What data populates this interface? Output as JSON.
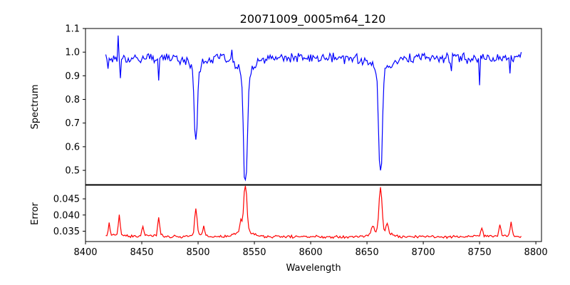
{
  "chart_data": {
    "title": "20071009_0005m64_120",
    "shared_x": {
      "label": "Wavelength",
      "xlim": [
        8400,
        8805
      ],
      "xticks": [
        8400,
        8450,
        8500,
        8550,
        8600,
        8650,
        8700,
        8750,
        8800
      ]
    },
    "panels": [
      {
        "type": "line",
        "ylabel": "Spectrum",
        "ylim": [
          0.44,
          1.1
        ],
        "yticks": [
          0.5,
          0.6,
          0.7,
          0.8,
          0.9,
          1.0,
          1.1
        ],
        "ytick_labels": [
          "0.5",
          "0.6",
          "0.7",
          "0.8",
          "0.9",
          "1.0",
          "1.1"
        ],
        "grid": false,
        "series": [
          {
            "color": "#0000ff",
            "x_start": 8418,
            "x_end": 8787,
            "x_step": 1,
            "baseline": 0.975,
            "noise": 0.03,
            "features": [
              {
                "kind": "absorption",
                "center": 8498,
                "depth": 0.35,
                "width": 1.2
              },
              {
                "kind": "absorption",
                "center": 8542,
                "depth": 0.51,
                "width": 1.6
              },
              {
                "kind": "absorption",
                "center": 8662,
                "depth": 0.47,
                "width": 1.5
              }
            ],
            "points": [
              [
                8418,
                0.99
              ],
              [
                8420,
                0.93
              ],
              [
                8429,
                1.07
              ],
              [
                8431,
                0.89
              ],
              [
                8450,
                0.97
              ],
              [
                8465,
                0.88
              ],
              [
                8498,
                0.63
              ],
              [
                8530,
                1.01
              ],
              [
                8538,
                0.9
              ],
              [
                8542,
                0.46
              ],
              [
                8560,
                0.97
              ],
              [
                8600,
                0.99
              ],
              [
                8630,
                0.95
              ],
              [
                8662,
                0.5
              ],
              [
                8690,
                0.96
              ],
              [
                8725,
                0.92
              ],
              [
                8750,
                0.86
              ],
              [
                8777,
                0.91
              ],
              [
                8787,
                1.0
              ]
            ]
          }
        ]
      },
      {
        "type": "line",
        "ylabel": "Error",
        "ylim": [
          0.0318,
          0.0492
        ],
        "yticks": [
          0.035,
          0.04,
          0.045
        ],
        "ytick_labels": [
          "0.035",
          "0.040",
          "0.045"
        ],
        "grid": false,
        "series": [
          {
            "color": "#ff0000",
            "x_start": 8418,
            "x_end": 8787,
            "x_step": 1,
            "baseline": 0.0333,
            "noise": 0.0006,
            "features": [
              {
                "kind": "emission",
                "center": 8421,
                "height": 0.004,
                "width": 0.7
              },
              {
                "kind": "emission",
                "center": 8430,
                "height": 0.006,
                "width": 0.8
              },
              {
                "kind": "emission",
                "center": 8451,
                "height": 0.003,
                "width": 0.8
              },
              {
                "kind": "emission",
                "center": 8465,
                "height": 0.0055,
                "width": 0.8
              },
              {
                "kind": "emission",
                "center": 8498,
                "height": 0.0078,
                "width": 1.0
              },
              {
                "kind": "emission",
                "center": 8505,
                "height": 0.0025,
                "width": 0.8
              },
              {
                "kind": "emission",
                "center": 8542,
                "height": 0.0157,
                "width": 1.3
              },
              {
                "kind": "emission",
                "center": 8538,
                "height": 0.0035,
                "width": 1.0
              },
              {
                "kind": "emission",
                "center": 8655,
                "height": 0.0025,
                "width": 1.0
              },
              {
                "kind": "emission",
                "center": 8662,
                "height": 0.014,
                "width": 1.3
              },
              {
                "kind": "emission",
                "center": 8668,
                "height": 0.003,
                "width": 1.0
              },
              {
                "kind": "emission",
                "center": 8752,
                "height": 0.0025,
                "width": 0.8
              },
              {
                "kind": "emission",
                "center": 8768,
                "height": 0.0035,
                "width": 0.8
              },
              {
                "kind": "emission",
                "center": 8778,
                "height": 0.004,
                "width": 0.8
              }
            ]
          }
        ]
      }
    ]
  }
}
